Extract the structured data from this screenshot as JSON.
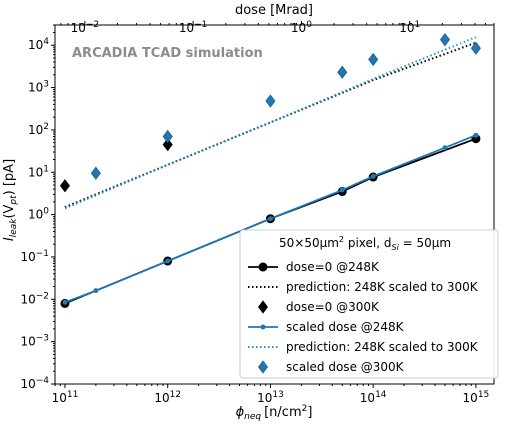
{
  "chart_data": {
    "type": "scatter",
    "annotation": "ARCADIA TCAD simulation",
    "xlabel_bottom": "ϕ",
    "xlabel_bottom_sub": "neq",
    "xlabel_bottom_unit": "[n/cm",
    "xlabel_bottom_unit_sup": "2",
    "xlabel_bottom_unit_end": "]",
    "xlabel_top": "dose [Mrad]",
    "ylabel_main": "I",
    "ylabel_sub": "leak",
    "ylabel_rest": "(V",
    "ylabel_sub2": "pt",
    "ylabel_end": ") [pA]",
    "xscale": "log",
    "yscale": "log",
    "xlim": [
      80000000000.0,
      1500000000000000.0
    ],
    "ylim": [
      0.0001,
      30000
    ],
    "top_xlim": [
      0.0053,
      60
    ],
    "x_ticks": [
      {
        "value": 100000000000.0,
        "base": "10",
        "exp": "11"
      },
      {
        "value": 1000000000000.0,
        "base": "10",
        "exp": "12"
      },
      {
        "value": 10000000000000.0,
        "base": "10",
        "exp": "13"
      },
      {
        "value": 100000000000000.0,
        "base": "10",
        "exp": "14"
      },
      {
        "value": 1000000000000000.0,
        "base": "10",
        "exp": "15"
      }
    ],
    "top_ticks": [
      {
        "value": 0.01,
        "base": "10",
        "exp": "−2"
      },
      {
        "value": 0.1,
        "base": "10",
        "exp": "−1"
      },
      {
        "value": 1,
        "base": "10",
        "exp": "0"
      },
      {
        "value": 10,
        "base": "10",
        "exp": "1"
      }
    ],
    "y_ticks": [
      {
        "value": 0.0001,
        "base": "10",
        "exp": "−4"
      },
      {
        "value": 0.001,
        "base": "10",
        "exp": "−3"
      },
      {
        "value": 0.01,
        "base": "10",
        "exp": "−2"
      },
      {
        "value": 0.1,
        "base": "10",
        "exp": "−1"
      },
      {
        "value": 1,
        "base": "10",
        "exp": "0"
      },
      {
        "value": 10,
        "base": "10",
        "exp": "1"
      },
      {
        "value": 100,
        "base": "10",
        "exp": "2"
      },
      {
        "value": 1000,
        "base": "10",
        "exp": "3"
      },
      {
        "value": 10000,
        "base": "10",
        "exp": "4"
      }
    ],
    "legend_title": {
      "prefix": "50×50μm",
      "sup": "2",
      "middle": " pixel, d",
      "sub": "Si",
      "suffix": " = 50μm"
    },
    "legend_position": "lower-right",
    "series": [
      {
        "name": "dose=0 @248K",
        "kind": "line-marker",
        "color": "#000000",
        "marker": "circle",
        "x": [
          100000000000.0,
          1000000000000.0,
          10000000000000.0,
          50000000000000.0,
          100000000000000.0,
          1000000000000000.0
        ],
        "y": [
          0.008,
          0.08,
          0.8,
          3.5,
          7.7,
          62
        ]
      },
      {
        "name": "prediction: 248K scaled to 300K",
        "kind": "dotted",
        "color": "#000000",
        "x": [
          100000000000.0,
          1000000000000.0,
          10000000000000.0,
          100000000000000.0,
          1000000000000000.0
        ],
        "y": [
          1.5,
          15,
          150,
          1500,
          11500
        ]
      },
      {
        "name": "dose=0 @300K",
        "kind": "marker",
        "color": "#000000",
        "marker": "diamond",
        "x": [
          100000000000.0,
          1000000000000.0
        ],
        "y": [
          4.8,
          45
        ]
      },
      {
        "name": "scaled dose @248K",
        "kind": "line-marker",
        "color": "#1f77b4",
        "marker": "dot",
        "x": [
          100000000000.0,
          200000000000.0,
          1000000000000.0,
          10000000000000.0,
          50000000000000.0,
          100000000000000.0,
          500000000000000.0,
          1000000000000000.0
        ],
        "y": [
          0.0085,
          0.016,
          0.08,
          0.8,
          3.8,
          8.0,
          38,
          75
        ]
      },
      {
        "name": "prediction: 248K scaled to 300K",
        "kind": "dotted",
        "color": "#1f9bc9",
        "x": [
          100000000000.0,
          1000000000000.0,
          10000000000000.0,
          100000000000000.0,
          1000000000000000.0
        ],
        "y": [
          1.4,
          15,
          150,
          1600,
          15500
        ]
      },
      {
        "name": "scaled dose @300K",
        "kind": "marker",
        "color": "#1f77b4",
        "marker": "diamond",
        "x": [
          200000000000.0,
          1000000000000.0,
          10000000000000.0,
          50000000000000.0,
          100000000000000.0,
          500000000000000.0,
          1000000000000000.0
        ],
        "y": [
          9.5,
          70,
          480,
          2300,
          4600,
          13500,
          8500
        ]
      }
    ]
  }
}
